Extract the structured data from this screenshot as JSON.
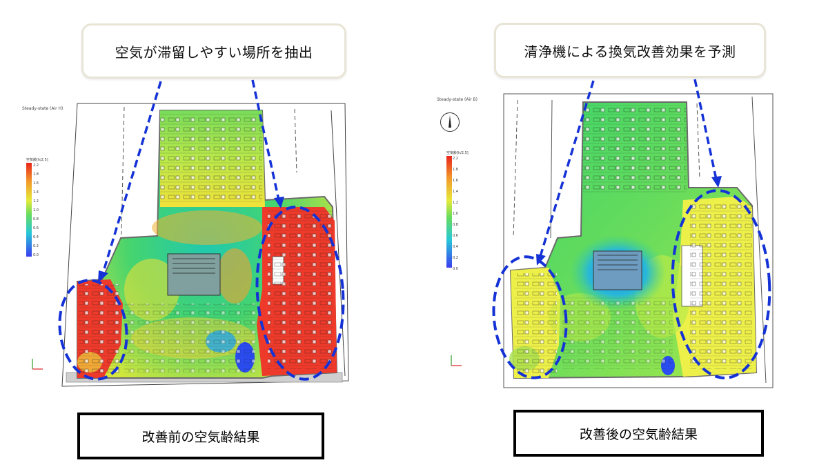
{
  "left": {
    "callout": "空気が滞留しやすい場所を抽出",
    "caption": "改善前の空気齢結果",
    "header_small": "Steady-state (Air H)",
    "legend_title": "空気齢[h/2.5]",
    "legend_values": [
      "2.2",
      "1.8",
      "1.6",
      "1.4",
      "1.2",
      "1.0",
      "0.8",
      "0.6",
      "0.4",
      "0.2",
      "0.0"
    ]
  },
  "right": {
    "callout": "清浄機による換気改善効果を予測",
    "caption": "改善後の空気齢結果",
    "header_small": "Steady-state (Air B)",
    "legend_title": "空気齢[h/2.5]",
    "legend_values": [
      "2.2",
      "1.8",
      "1.6",
      "1.4",
      "1.2",
      "1.0",
      "0.8",
      "0.6",
      "0.4",
      "0.2",
      "0.0"
    ]
  },
  "colors": {
    "highlight_dashes": "#1432d6",
    "stagnant_red": "#ee3a2a",
    "fresh_green": "#63d86b",
    "fresh_blue": "#2d6df0",
    "improved_yellow": "#eef04a"
  }
}
